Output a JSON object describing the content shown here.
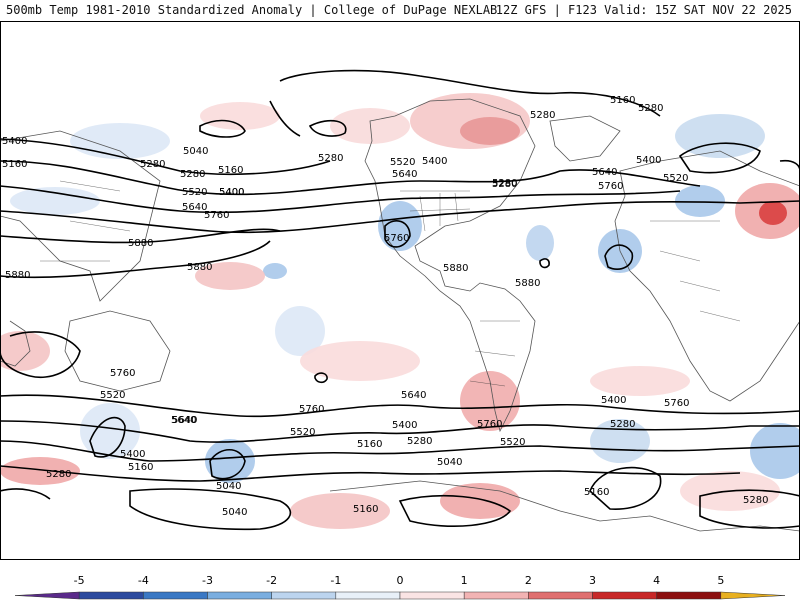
{
  "header": {
    "left_title": "500mb Temp 1981-2010 Standardized Anomaly | College of DuPage NEXLAB",
    "right_title": "12Z GFS | F123 Valid: 15Z SAT NOV 22 2025"
  },
  "colors": {
    "contour": "#000000",
    "border": "#333333",
    "coast": "#555555",
    "frame": "#000000",
    "warm_1": "#f9dcdc",
    "warm_2": "#f0a8a8",
    "warm_3": "#d94040",
    "cold_1": "#dde8f6",
    "cold_2": "#a9c8ea",
    "cold_3": "#3a7fd0"
  },
  "contour_labels": [
    "5160",
    "5280",
    "5280",
    "5400",
    "5040",
    "5160",
    "5280",
    "5520",
    "5400",
    "5640",
    "5280",
    "5160",
    "5280",
    "5280",
    "5400",
    "5640",
    "5520",
    "5760",
    "5400",
    "5280",
    "5520",
    "5400",
    "5640",
    "5760",
    "5880",
    "5880",
    "5880",
    "5760",
    "5880",
    "5880",
    "5760",
    "5520",
    "5640",
    "5640",
    "5400",
    "5760",
    "5520",
    "5760",
    "5640",
    "5400",
    "5280",
    "5760",
    "5400",
    "5160",
    "5280",
    "5520",
    "5160",
    "5040",
    "5040",
    "5040",
    "5160",
    "5280",
    "5160",
    "5280"
  ],
  "colorbar": {
    "ticks": [
      "-5",
      "-4",
      "-3",
      "-2",
      "-1",
      "0",
      "1",
      "2",
      "3",
      "4",
      "5"
    ],
    "colors": [
      "#5a2a8a",
      "#2c4a9e",
      "#3a78c4",
      "#7aaee0",
      "#bcd4ee",
      "#e8f0f8",
      "#fae4e4",
      "#f2b3b3",
      "#e07070",
      "#c82828",
      "#8c1010",
      "#e8b020"
    ]
  }
}
